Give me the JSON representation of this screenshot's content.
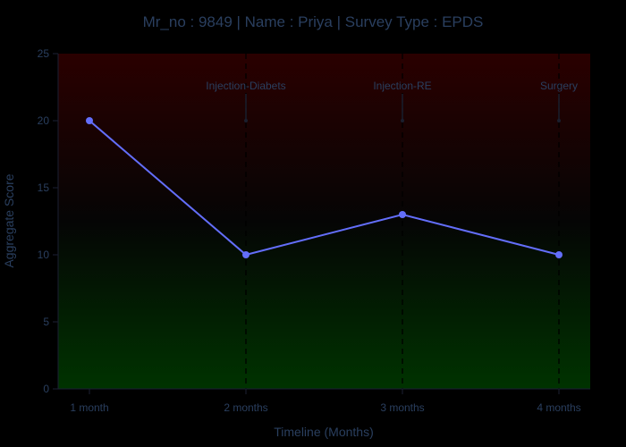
{
  "chart_data": {
    "type": "line",
    "title": "Mr_no : 9849 | Name : Priya | Survey Type : EPDS",
    "xlabel": "Timeline (Months)",
    "ylabel": "Aggregate Score",
    "categories": [
      "1 month",
      "2 months",
      "3 months",
      "4 months"
    ],
    "series": [
      {
        "values": [
          20,
          10,
          13,
          10
        ],
        "color": "#636efa"
      }
    ],
    "ylim": [
      0,
      25
    ],
    "yticks": [
      0,
      5,
      10,
      15,
      20,
      25
    ],
    "xlim": [
      -0.2,
      3.2
    ],
    "grid": false,
    "annotations": [
      {
        "x": "2 months",
        "y": 20,
        "text": "Injection-Diabets"
      },
      {
        "x": "3 months",
        "y": 20,
        "text": "Injection-RE"
      },
      {
        "x": "4 months",
        "y": 20,
        "text": "Surgery"
      }
    ],
    "background_gradient": {
      "top": "#2a0000",
      "middle": "#050505",
      "bottom": "#003300"
    },
    "colors": {
      "title": "#2a3f5f",
      "axis_text": "#2a3f5f",
      "axis_line": "#1b1f33",
      "annotation_line": "#1a1f2e"
    }
  }
}
